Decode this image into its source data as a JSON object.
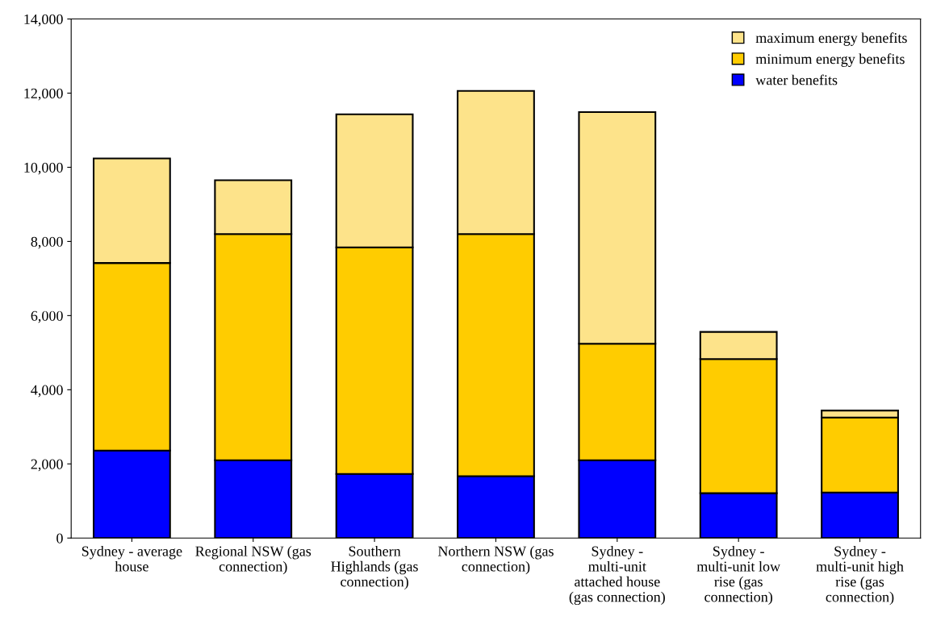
{
  "chart_data": {
    "type": "bar",
    "stacked": true,
    "categories": [
      "Sydney - average house",
      "Regional NSW (gas connection)",
      "Southern Highlands (gas connection)",
      "Northern NSW (gas connection)",
      "Sydney - multi-unit attached house (gas connection)",
      "Sydney - multi-unit low rise (gas connection)",
      "Sydney - multi-unit high rise (gas connection)"
    ],
    "series": [
      {
        "name": "water benefits",
        "color": "#0000ff",
        "values": [
          2360,
          2100,
          1730,
          1670,
          2100,
          1210,
          1230
        ]
      },
      {
        "name": "minimum energy benefits",
        "color": "#ffcc00",
        "values": [
          5060,
          6100,
          6110,
          6530,
          3140,
          3620,
          2020
        ]
      },
      {
        "name": "maximum energy benefits",
        "color": "#fde38a",
        "values": [
          2820,
          1450,
          3590,
          3860,
          6250,
          730,
          190
        ]
      }
    ],
    "ylim": [
      0,
      14000
    ],
    "yticks": [
      0,
      {
        "value": 2000,
        "label": "2,000"
      },
      {
        "value": 4000,
        "label": "4,000"
      },
      {
        "value": 6000,
        "label": "6,000"
      },
      {
        "value": 8000,
        "label": "8,000"
      },
      {
        "value": 10000,
        "label": "10,000"
      },
      {
        "value": 12000,
        "label": "12,000"
      },
      {
        "value": 14000,
        "label": "14,000"
      }
    ],
    "grid": false,
    "legend": "top right"
  }
}
